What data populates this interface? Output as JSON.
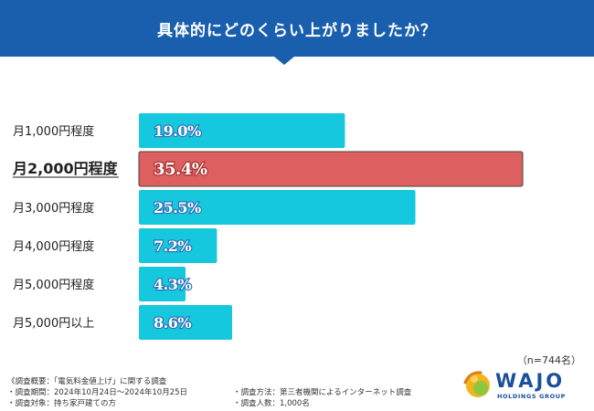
{
  "header": {
    "title": "具体的にどのくらい上がりましたか？"
  },
  "chart_data": {
    "type": "bar",
    "orientation": "horizontal",
    "title": "具体的にどのくらい上がりましたか？",
    "categories": [
      "月1,000円程度",
      "月2,000円程度",
      "月3,000円程度",
      "月4,000円程度",
      "月5,000円程度",
      "月5,000円以上"
    ],
    "values": [
      19.0,
      35.4,
      25.5,
      7.2,
      4.3,
      8.6
    ],
    "value_labels": [
      "19.0%",
      "35.4%",
      "25.5%",
      "7.2%",
      "4.3%",
      "8.6%"
    ],
    "unit": "%",
    "highlight_index": 1,
    "xlim": [
      0,
      35.4
    ],
    "colors": {
      "bar": "#16c8dd",
      "highlight": "#de5f5f"
    }
  },
  "sample_size": "（n=744名）",
  "footnotes": {
    "left": [
      "《調査概要：「電気料金値上げ」に関する調査",
      "・調査期間：2024年10月24日〜2024年10月25日",
      "・調査対象：持ち家戸建ての方"
    ],
    "right": [
      "・調査方法：第三者機関によるインターネット調査",
      "・調査人数：1,000名"
    ]
  },
  "logo": {
    "name": "WAJO",
    "subtitle": "HOLDINGS GROUP"
  }
}
